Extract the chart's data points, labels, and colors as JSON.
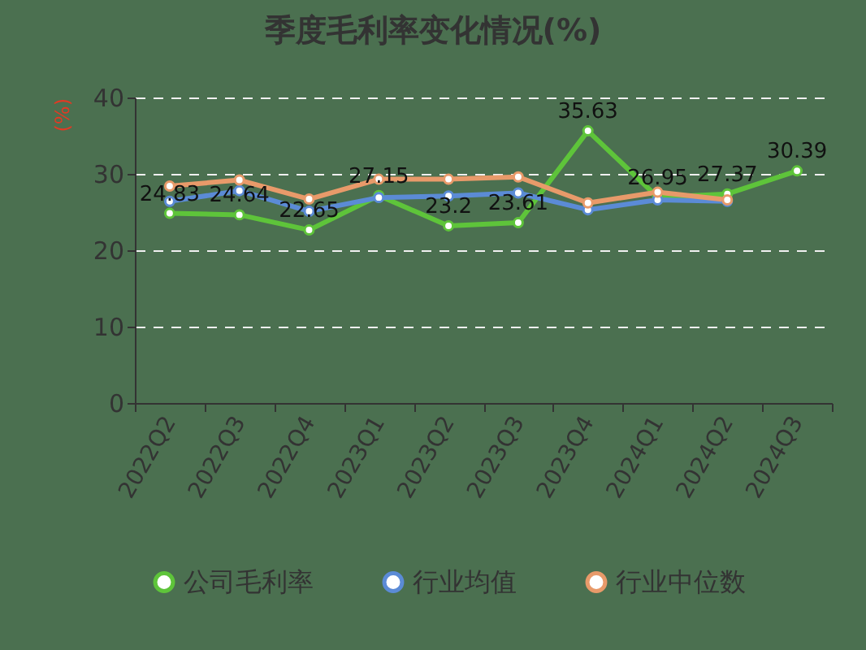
{
  "chart_data": {
    "type": "line",
    "title": "季度毛利率变化情况(%)",
    "ylabel": "(%)",
    "categories": [
      "2022Q2",
      "2022Q3",
      "2022Q4",
      "2023Q1",
      "2023Q2",
      "2023Q3",
      "2023Q4",
      "2024Q1",
      "2024Q2",
      "2024Q3"
    ],
    "series": [
      {
        "name": "公司毛利率",
        "color": "#5ec43a",
        "values": [
          24.83,
          24.64,
          22.65,
          27.15,
          23.2,
          23.61,
          35.63,
          26.95,
          27.37,
          30.39
        ],
        "value_labels": [
          "24.83",
          "24.64",
          "22.65",
          "27.15",
          "23.2",
          "23.61",
          "35.63",
          "26.95",
          "27.37",
          "30.39"
        ]
      },
      {
        "name": "行业均值",
        "color": "#5b8bd6",
        "values": [
          26.4,
          27.8,
          25.1,
          26.9,
          27.1,
          27.5,
          25.3,
          26.6,
          26.4,
          null
        ]
      },
      {
        "name": "行业中位数",
        "color": "#e89a6a",
        "values": [
          28.4,
          29.2,
          26.7,
          29.3,
          29.3,
          29.6,
          26.2,
          27.6,
          26.6,
          null
        ]
      }
    ],
    "ylim": [
      0,
      40
    ],
    "yticks": [
      0,
      10,
      20,
      30,
      40
    ],
    "grid": "y",
    "legend": "bottom",
    "marker": "circle",
    "line_style": "solid"
  }
}
